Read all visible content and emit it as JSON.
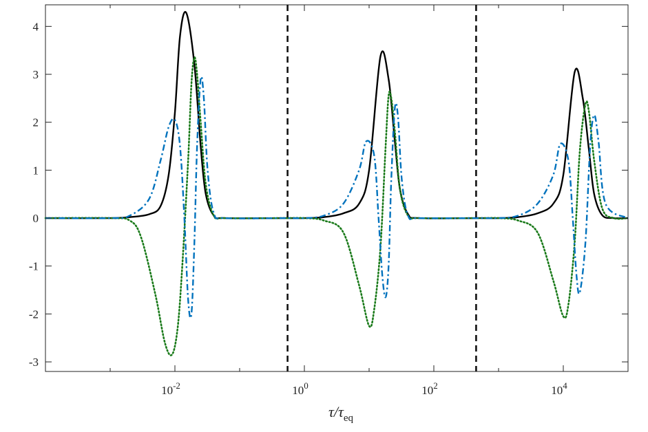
{
  "chart_data": {
    "type": "line",
    "title": "",
    "xlabel": "τ/τeq",
    "xlabel_main": "τ/τ",
    "xlabel_sub": "eq",
    "ylabel": "",
    "xscale": "log",
    "xlim": [
      0.0001,
      100000
    ],
    "ylim": [
      -3.2,
      4.45
    ],
    "x_tick_values": [
      0.01,
      1,
      100,
      10000
    ],
    "x_tick_labels": [
      {
        "base": "10",
        "exp": "-2"
      },
      {
        "base": "10",
        "exp": "0"
      },
      {
        "base": "10",
        "exp": "2"
      },
      {
        "base": "10",
        "exp": "4"
      }
    ],
    "y_ticks": [
      -3,
      -2,
      -1,
      0,
      1,
      2,
      3,
      4
    ],
    "y_tick_labels": [
      "-3",
      "-2",
      "-1",
      "0",
      "1",
      "2",
      "3",
      "4"
    ],
    "grid": false,
    "legend": "none",
    "vertical_lines": [
      0.55,
      450
    ],
    "series": [
      {
        "style": "solid",
        "color": "#000000",
        "x": [
          0.0001,
          0.001,
          0.002,
          0.004,
          0.006,
          0.008,
          0.01,
          0.012,
          0.015,
          0.02,
          0.025,
          0.03,
          0.04,
          0.06,
          0.5,
          1,
          2,
          4,
          7,
          10,
          15,
          20,
          25,
          30,
          40,
          60,
          500,
          1000,
          2000,
          4000,
          7000,
          10000,
          15000,
          20000,
          25000,
          30000,
          40000,
          60000,
          100000
        ],
        "y": [
          0,
          0,
          0.02,
          0.08,
          0.25,
          0.9,
          2.2,
          3.8,
          4.28,
          3.2,
          1.5,
          0.5,
          0.05,
          0,
          0,
          0,
          0.02,
          0.1,
          0.3,
          1.0,
          3.38,
          2.9,
          1.6,
          0.6,
          0.08,
          0,
          0,
          0,
          0.02,
          0.1,
          0.3,
          0.9,
          3.05,
          2.5,
          1.4,
          0.5,
          0.06,
          0,
          0
        ]
      },
      {
        "style": "dotted",
        "color": "#1a7a1a",
        "x": [
          0.0001,
          0.001,
          0.002,
          0.003,
          0.005,
          0.007,
          0.009,
          0.011,
          0.013,
          0.016,
          0.018,
          0.02,
          0.022,
          0.025,
          0.03,
          0.04,
          0.06,
          0.5,
          1,
          2,
          4,
          7,
          10,
          12,
          15,
          18,
          20,
          22,
          25,
          30,
          40,
          60,
          500,
          1000,
          2000,
          4000,
          7000,
          10000,
          12000,
          15000,
          18000,
          22000,
          25000,
          30000,
          40000,
          60000,
          100000
        ],
        "y": [
          0,
          0,
          -0.05,
          -0.4,
          -1.6,
          -2.6,
          -2.85,
          -2.3,
          -1.0,
          1.2,
          2.8,
          3.35,
          3.0,
          2.0,
          0.7,
          0.05,
          0,
          0,
          0,
          -0.05,
          -0.3,
          -1.4,
          -2.25,
          -1.9,
          -0.6,
          1.5,
          2.55,
          2.5,
          1.8,
          0.6,
          0.05,
          0,
          0,
          0,
          -0.05,
          -0.3,
          -1.3,
          -2.05,
          -1.8,
          -0.5,
          1.4,
          2.38,
          2.2,
          1.2,
          0.2,
          0,
          0
        ]
      },
      {
        "style": "dashdot",
        "color": "#0072bd",
        "x": [
          0.0001,
          0.001,
          0.002,
          0.004,
          0.006,
          0.008,
          0.01,
          0.012,
          0.014,
          0.016,
          0.018,
          0.02,
          0.022,
          0.025,
          0.028,
          0.032,
          0.04,
          0.06,
          0.5,
          1,
          2,
          4,
          7,
          9,
          12,
          14,
          16,
          18,
          20,
          22,
          25,
          28,
          32,
          40,
          60,
          500,
          1000,
          2000,
          4000,
          7000,
          9000,
          12000,
          14000,
          16000,
          18000,
          22000,
          26000,
          30000,
          35000,
          45000,
          100000
        ],
        "y": [
          0,
          0,
          0.05,
          0.4,
          1.2,
          1.9,
          2.05,
          1.5,
          0.0,
          -1.7,
          -2.0,
          -0.5,
          1.5,
          2.9,
          2.5,
          1.0,
          0.1,
          0,
          0,
          0,
          0.05,
          0.3,
          1.0,
          1.6,
          1.3,
          0.0,
          -1.2,
          -1.65,
          -1.0,
          0.8,
          2.3,
          2.1,
          0.8,
          0.05,
          0,
          0,
          0,
          0.05,
          0.3,
          0.9,
          1.55,
          1.2,
          0.0,
          -1.2,
          -1.55,
          -0.5,
          1.5,
          2.15,
          1.6,
          0.3,
          0
        ]
      }
    ]
  }
}
